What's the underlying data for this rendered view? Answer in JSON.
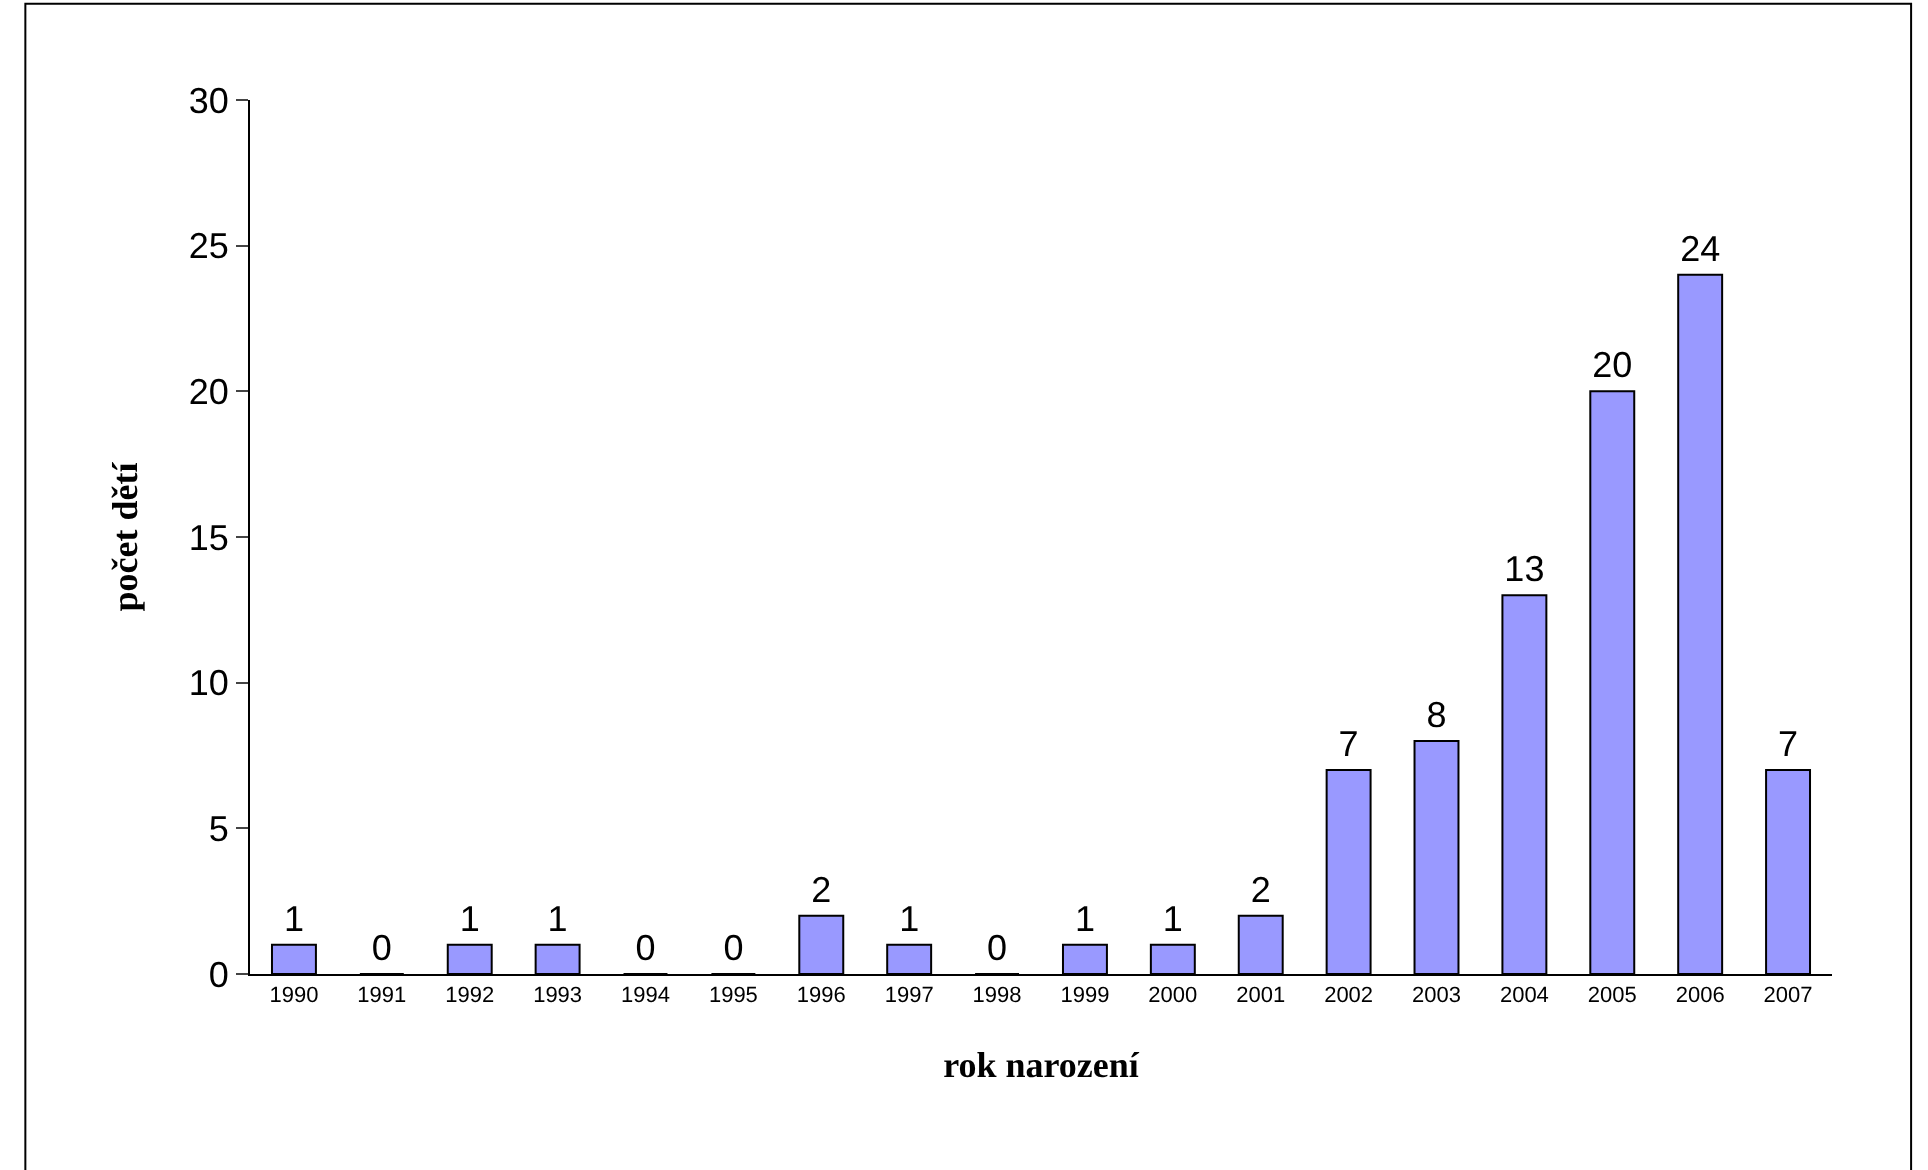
{
  "chart_data": {
    "type": "bar",
    "xlabel": "rok narození",
    "ylabel": "počet dětí",
    "categories": [
      "1990",
      "1991",
      "1992",
      "1993",
      "1994",
      "1995",
      "1996",
      "1997",
      "1998",
      "1999",
      "2000",
      "2001",
      "2002",
      "2003",
      "2004",
      "2005",
      "2006",
      "2007"
    ],
    "values": [
      1,
      0,
      1,
      1,
      0,
      0,
      2,
      1,
      0,
      1,
      1,
      2,
      7,
      8,
      13,
      20,
      24,
      7
    ],
    "color": "#9999ff",
    "ylim": [
      0,
      30
    ],
    "yticks": [
      0,
      5,
      10,
      15,
      20,
      25,
      30
    ],
    "grid": false,
    "data_labels": true
  }
}
